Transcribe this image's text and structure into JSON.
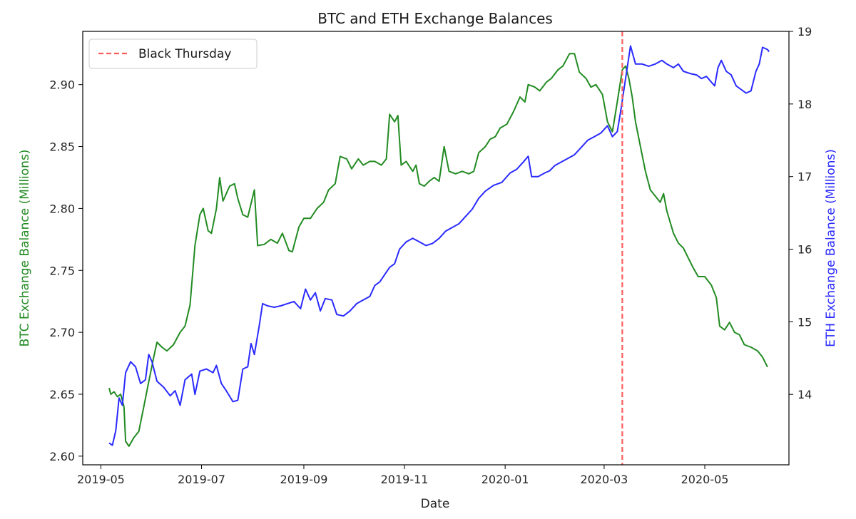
{
  "chart_data": {
    "type": "line",
    "title": "BTC and ETH Exchange Balances",
    "xlabel": "Date",
    "x_axis": {
      "type": "date",
      "range": [
        "2019-04-20",
        "2020-06-21"
      ],
      "ticks": [
        "2019-05-01",
        "2019-07-01",
        "2019-09-01",
        "2019-11-01",
        "2020-01-01",
        "2020-03-01",
        "2020-05-01"
      ],
      "tick_labels": [
        "2019-05",
        "2019-07",
        "2019-09",
        "2019-11",
        "2020-01",
        "2020-03",
        "2020-05"
      ]
    },
    "y_left": {
      "label": "BTC Exchange Balance (Millions)",
      "color": "#228b22",
      "range": [
        2.593,
        2.943
      ],
      "ticks": [
        2.6,
        2.65,
        2.7,
        2.75,
        2.8,
        2.85,
        2.9
      ],
      "tick_labels": [
        "2.60",
        "2.65",
        "2.70",
        "2.75",
        "2.80",
        "2.85",
        "2.90"
      ]
    },
    "y_right": {
      "label": "ETH Exchange Balance (Millions)",
      "color": "#2a2aff",
      "range": [
        13.03,
        19.0
      ],
      "ticks": [
        14,
        15,
        16,
        17,
        18,
        19
      ],
      "tick_labels": [
        "14",
        "15",
        "16",
        "17",
        "18",
        "19"
      ]
    },
    "legend": {
      "placement": "top-left",
      "entries": [
        {
          "label": "Black Thursday",
          "color": "#ff5c5c",
          "style": "dashed"
        }
      ]
    },
    "annotations": [
      {
        "type": "vline",
        "x": "2020-03-12",
        "label": "Black Thursday",
        "color": "#ff5c5c"
      }
    ],
    "series": [
      {
        "axis": "left",
        "color": "#228b22",
        "points": [
          [
            "2019-05-06",
            2.655
          ],
          [
            "2019-05-07",
            2.65
          ],
          [
            "2019-05-09",
            2.652
          ],
          [
            "2019-05-11",
            2.648
          ],
          [
            "2019-05-13",
            2.65
          ],
          [
            "2019-05-15",
            2.64
          ],
          [
            "2019-05-16",
            2.612
          ],
          [
            "2019-05-18",
            2.608
          ],
          [
            "2019-05-21",
            2.615
          ],
          [
            "2019-05-24",
            2.62
          ],
          [
            "2019-05-27",
            2.64
          ],
          [
            "2019-05-30",
            2.66
          ],
          [
            "2019-06-02",
            2.68
          ],
          [
            "2019-06-04",
            2.692
          ],
          [
            "2019-06-07",
            2.688
          ],
          [
            "2019-06-10",
            2.685
          ],
          [
            "2019-06-14",
            2.69
          ],
          [
            "2019-06-18",
            2.7
          ],
          [
            "2019-06-21",
            2.705
          ],
          [
            "2019-06-24",
            2.722
          ],
          [
            "2019-06-27",
            2.77
          ],
          [
            "2019-06-30",
            2.795
          ],
          [
            "2019-07-02",
            2.8
          ],
          [
            "2019-07-05",
            2.782
          ],
          [
            "2019-07-07",
            2.78
          ],
          [
            "2019-07-10",
            2.8
          ],
          [
            "2019-07-12",
            2.825
          ],
          [
            "2019-07-14",
            2.806
          ],
          [
            "2019-07-18",
            2.818
          ],
          [
            "2019-07-21",
            2.82
          ],
          [
            "2019-07-23",
            2.808
          ],
          [
            "2019-07-26",
            2.795
          ],
          [
            "2019-07-29",
            2.793
          ],
          [
            "2019-08-02",
            2.815
          ],
          [
            "2019-08-04",
            2.77
          ],
          [
            "2019-08-08",
            2.771
          ],
          [
            "2019-08-12",
            2.775
          ],
          [
            "2019-08-16",
            2.772
          ],
          [
            "2019-08-19",
            2.78
          ],
          [
            "2019-08-23",
            2.766
          ],
          [
            "2019-08-25",
            2.765
          ],
          [
            "2019-08-29",
            2.785
          ],
          [
            "2019-09-01",
            2.792
          ],
          [
            "2019-09-05",
            2.792
          ],
          [
            "2019-09-09",
            2.8
          ],
          [
            "2019-09-13",
            2.805
          ],
          [
            "2019-09-16",
            2.815
          ],
          [
            "2019-09-20",
            2.82
          ],
          [
            "2019-09-23",
            2.842
          ],
          [
            "2019-09-27",
            2.84
          ],
          [
            "2019-09-30",
            2.832
          ],
          [
            "2019-10-04",
            2.84
          ],
          [
            "2019-10-07",
            2.835
          ],
          [
            "2019-10-11",
            2.838
          ],
          [
            "2019-10-14",
            2.838
          ],
          [
            "2019-10-18",
            2.835
          ],
          [
            "2019-10-21",
            2.84
          ],
          [
            "2019-10-23",
            2.876
          ],
          [
            "2019-10-26",
            2.87
          ],
          [
            "2019-10-28",
            2.875
          ],
          [
            "2019-10-30",
            2.835
          ],
          [
            "2019-11-02",
            2.838
          ],
          [
            "2019-11-06",
            2.83
          ],
          [
            "2019-11-08",
            2.835
          ],
          [
            "2019-11-10",
            2.82
          ],
          [
            "2019-11-13",
            2.818
          ],
          [
            "2019-11-16",
            2.822
          ],
          [
            "2019-11-19",
            2.825
          ],
          [
            "2019-11-22",
            2.822
          ],
          [
            "2019-11-25",
            2.85
          ],
          [
            "2019-11-28",
            2.83
          ],
          [
            "2019-12-02",
            2.828
          ],
          [
            "2019-12-06",
            2.83
          ],
          [
            "2019-12-10",
            2.828
          ],
          [
            "2019-12-13",
            2.83
          ],
          [
            "2019-12-16",
            2.845
          ],
          [
            "2019-12-20",
            2.85
          ],
          [
            "2019-12-23",
            2.856
          ],
          [
            "2019-12-26",
            2.858
          ],
          [
            "2019-12-29",
            2.865
          ],
          [
            "2020-01-02",
            2.868
          ],
          [
            "2020-01-06",
            2.878
          ],
          [
            "2020-01-10",
            2.89
          ],
          [
            "2020-01-13",
            2.886
          ],
          [
            "2020-01-15",
            2.9
          ],
          [
            "2020-01-19",
            2.898
          ],
          [
            "2020-01-22",
            2.895
          ],
          [
            "2020-01-26",
            2.902
          ],
          [
            "2020-01-29",
            2.905
          ],
          [
            "2020-02-02",
            2.912
          ],
          [
            "2020-02-05",
            2.915
          ],
          [
            "2020-02-09",
            2.925
          ],
          [
            "2020-02-12",
            2.925
          ],
          [
            "2020-02-15",
            2.91
          ],
          [
            "2020-02-19",
            2.905
          ],
          [
            "2020-02-22",
            2.898
          ],
          [
            "2020-02-25",
            2.9
          ],
          [
            "2020-02-29",
            2.892
          ],
          [
            "2020-03-03",
            2.87
          ],
          [
            "2020-03-06",
            2.862
          ],
          [
            "2020-03-08",
            2.878
          ],
          [
            "2020-03-10",
            2.895
          ],
          [
            "2020-03-12",
            2.912
          ],
          [
            "2020-03-14",
            2.915
          ],
          [
            "2020-03-16",
            2.905
          ],
          [
            "2020-03-18",
            2.89
          ],
          [
            "2020-03-20",
            2.87
          ],
          [
            "2020-03-23",
            2.85
          ],
          [
            "2020-03-26",
            2.83
          ],
          [
            "2020-03-29",
            2.815
          ],
          [
            "2020-04-01",
            2.81
          ],
          [
            "2020-04-04",
            2.805
          ],
          [
            "2020-04-06",
            2.812
          ],
          [
            "2020-04-08",
            2.798
          ],
          [
            "2020-04-12",
            2.78
          ],
          [
            "2020-04-15",
            2.772
          ],
          [
            "2020-04-18",
            2.768
          ],
          [
            "2020-04-21",
            2.76
          ],
          [
            "2020-04-24",
            2.752
          ],
          [
            "2020-04-27",
            2.745
          ],
          [
            "2020-05-01",
            2.745
          ],
          [
            "2020-05-05",
            2.738
          ],
          [
            "2020-05-08",
            2.728
          ],
          [
            "2020-05-10",
            2.705
          ],
          [
            "2020-05-13",
            2.702
          ],
          [
            "2020-05-16",
            2.708
          ],
          [
            "2020-05-19",
            2.7
          ],
          [
            "2020-05-22",
            2.698
          ],
          [
            "2020-05-25",
            2.69
          ],
          [
            "2020-05-29",
            2.688
          ],
          [
            "2020-06-02",
            2.685
          ],
          [
            "2020-06-05",
            2.68
          ],
          [
            "2020-06-08",
            2.672
          ]
        ]
      },
      {
        "axis": "right",
        "color": "#2a2aff",
        "points": [
          [
            "2019-05-06",
            13.33
          ],
          [
            "2019-05-08",
            13.3
          ],
          [
            "2019-05-10",
            13.5
          ],
          [
            "2019-05-12",
            13.95
          ],
          [
            "2019-05-14",
            13.85
          ],
          [
            "2019-05-16",
            14.3
          ],
          [
            "2019-05-19",
            14.45
          ],
          [
            "2019-05-22",
            14.38
          ],
          [
            "2019-05-25",
            14.15
          ],
          [
            "2019-05-28",
            14.2
          ],
          [
            "2019-05-30",
            14.55
          ],
          [
            "2019-06-01",
            14.45
          ],
          [
            "2019-06-04",
            14.18
          ],
          [
            "2019-06-08",
            14.1
          ],
          [
            "2019-06-12",
            13.98
          ],
          [
            "2019-06-15",
            14.05
          ],
          [
            "2019-06-18",
            13.85
          ],
          [
            "2019-06-21",
            14.2
          ],
          [
            "2019-06-25",
            14.28
          ],
          [
            "2019-06-27",
            14.0
          ],
          [
            "2019-06-30",
            14.32
          ],
          [
            "2019-07-04",
            14.35
          ],
          [
            "2019-07-08",
            14.3
          ],
          [
            "2019-07-10",
            14.4
          ],
          [
            "2019-07-13",
            14.15
          ],
          [
            "2019-07-16",
            14.05
          ],
          [
            "2019-07-20",
            13.9
          ],
          [
            "2019-07-23",
            13.92
          ],
          [
            "2019-07-26",
            14.35
          ],
          [
            "2019-07-29",
            14.38
          ],
          [
            "2019-07-31",
            14.7
          ],
          [
            "2019-08-02",
            14.55
          ],
          [
            "2019-08-05",
            14.95
          ],
          [
            "2019-08-07",
            15.25
          ],
          [
            "2019-08-10",
            15.22
          ],
          [
            "2019-08-14",
            15.2
          ],
          [
            "2019-08-18",
            15.22
          ],
          [
            "2019-08-22",
            15.25
          ],
          [
            "2019-08-26",
            15.28
          ],
          [
            "2019-08-30",
            15.18
          ],
          [
            "2019-09-02",
            15.45
          ],
          [
            "2019-09-05",
            15.3
          ],
          [
            "2019-09-08",
            15.4
          ],
          [
            "2019-09-11",
            15.15
          ],
          [
            "2019-09-14",
            15.32
          ],
          [
            "2019-09-18",
            15.3
          ],
          [
            "2019-09-21",
            15.1
          ],
          [
            "2019-09-25",
            15.08
          ],
          [
            "2019-09-29",
            15.15
          ],
          [
            "2019-10-03",
            15.25
          ],
          [
            "2019-10-07",
            15.3
          ],
          [
            "2019-10-11",
            15.35
          ],
          [
            "2019-10-14",
            15.5
          ],
          [
            "2019-10-17",
            15.55
          ],
          [
            "2019-10-20",
            15.65
          ],
          [
            "2019-10-23",
            15.75
          ],
          [
            "2019-10-26",
            15.8
          ],
          [
            "2019-10-29",
            16.0
          ],
          [
            "2019-11-02",
            16.1
          ],
          [
            "2019-11-06",
            16.15
          ],
          [
            "2019-11-10",
            16.1
          ],
          [
            "2019-11-14",
            16.05
          ],
          [
            "2019-11-18",
            16.08
          ],
          [
            "2019-11-22",
            16.15
          ],
          [
            "2019-11-26",
            16.25
          ],
          [
            "2019-11-30",
            16.3
          ],
          [
            "2019-12-04",
            16.35
          ],
          [
            "2019-12-08",
            16.45
          ],
          [
            "2019-12-12",
            16.55
          ],
          [
            "2019-12-16",
            16.7
          ],
          [
            "2019-12-20",
            16.8
          ],
          [
            "2019-12-25",
            16.88
          ],
          [
            "2019-12-30",
            16.92
          ],
          [
            "2020-01-04",
            17.05
          ],
          [
            "2020-01-08",
            17.1
          ],
          [
            "2020-01-12",
            17.2
          ],
          [
            "2020-01-15",
            17.28
          ],
          [
            "2020-01-17",
            17.0
          ],
          [
            "2020-01-21",
            17.0
          ],
          [
            "2020-01-25",
            17.05
          ],
          [
            "2020-01-28",
            17.08
          ],
          [
            "2020-01-31",
            17.15
          ],
          [
            "2020-02-04",
            17.2
          ],
          [
            "2020-02-08",
            17.25
          ],
          [
            "2020-02-12",
            17.3
          ],
          [
            "2020-02-16",
            17.4
          ],
          [
            "2020-02-20",
            17.5
          ],
          [
            "2020-02-24",
            17.55
          ],
          [
            "2020-02-28",
            17.6
          ],
          [
            "2020-03-03",
            17.7
          ],
          [
            "2020-03-06",
            17.55
          ],
          [
            "2020-03-09",
            17.62
          ],
          [
            "2020-03-11",
            17.9
          ],
          [
            "2020-03-13",
            18.2
          ],
          [
            "2020-03-15",
            18.5
          ],
          [
            "2020-03-17",
            18.8
          ],
          [
            "2020-03-20",
            18.55
          ],
          [
            "2020-03-24",
            18.55
          ],
          [
            "2020-03-28",
            18.52
          ],
          [
            "2020-04-01",
            18.55
          ],
          [
            "2020-04-05",
            18.6
          ],
          [
            "2020-04-08",
            18.55
          ],
          [
            "2020-04-12",
            18.5
          ],
          [
            "2020-04-15",
            18.55
          ],
          [
            "2020-04-18",
            18.45
          ],
          [
            "2020-04-22",
            18.42
          ],
          [
            "2020-04-26",
            18.4
          ],
          [
            "2020-04-29",
            18.35
          ],
          [
            "2020-05-02",
            18.38
          ],
          [
            "2020-05-05",
            18.3
          ],
          [
            "2020-05-07",
            18.25
          ],
          [
            "2020-05-09",
            18.5
          ],
          [
            "2020-05-11",
            18.6
          ],
          [
            "2020-05-14",
            18.45
          ],
          [
            "2020-05-17",
            18.4
          ],
          [
            "2020-05-20",
            18.25
          ],
          [
            "2020-05-23",
            18.2
          ],
          [
            "2020-05-26",
            18.15
          ],
          [
            "2020-05-29",
            18.18
          ],
          [
            "2020-06-01",
            18.45
          ],
          [
            "2020-06-03",
            18.55
          ],
          [
            "2020-06-05",
            18.78
          ],
          [
            "2020-06-08",
            18.75
          ],
          [
            "2020-06-09",
            18.72
          ]
        ]
      }
    ]
  }
}
